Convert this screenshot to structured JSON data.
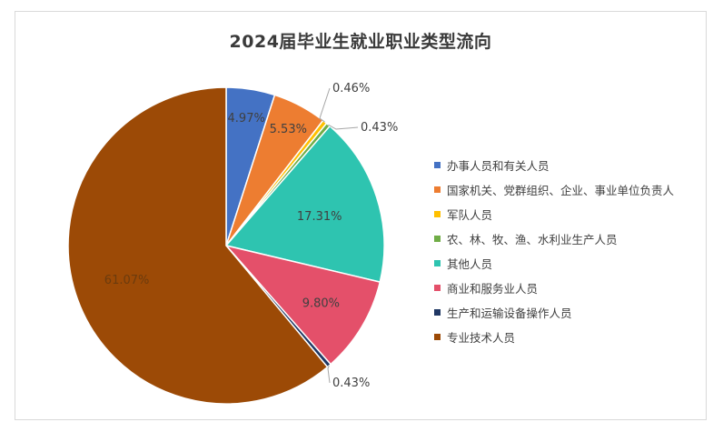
{
  "chart_data": {
    "type": "pie",
    "title": "2024届毕业生就业职业类型流向",
    "slices": [
      {
        "name": "办事人员和有关人员",
        "value": 4.97,
        "label": "4.97%",
        "color": "#4472c4"
      },
      {
        "name": "国家机关、党群组织、企业、事业单位负责人",
        "value": 5.53,
        "label": "5.53%",
        "color": "#ed7d31"
      },
      {
        "name": "军队人员",
        "value": 0.46,
        "label": "0.46%",
        "color": "#ffc000"
      },
      {
        "name": "农、林、牧、渔、水利业生产人员",
        "value": 0.43,
        "label": "0.43%",
        "color": "#70ad47"
      },
      {
        "name": "其他人员",
        "value": 17.31,
        "label": "17.31%",
        "color": "#2ec4b0"
      },
      {
        "name": "商业和服务业人员",
        "value": 9.8,
        "label": "9.80%",
        "color": "#e4506a"
      },
      {
        "name": "生产和运输设备操作人员",
        "value": 0.43,
        "label": "0.43%",
        "color": "#203864"
      },
      {
        "name": "专业技术人员",
        "value": 61.07,
        "label": "61.07%",
        "color": "#9c4a06"
      }
    ],
    "legend_position": "right"
  }
}
